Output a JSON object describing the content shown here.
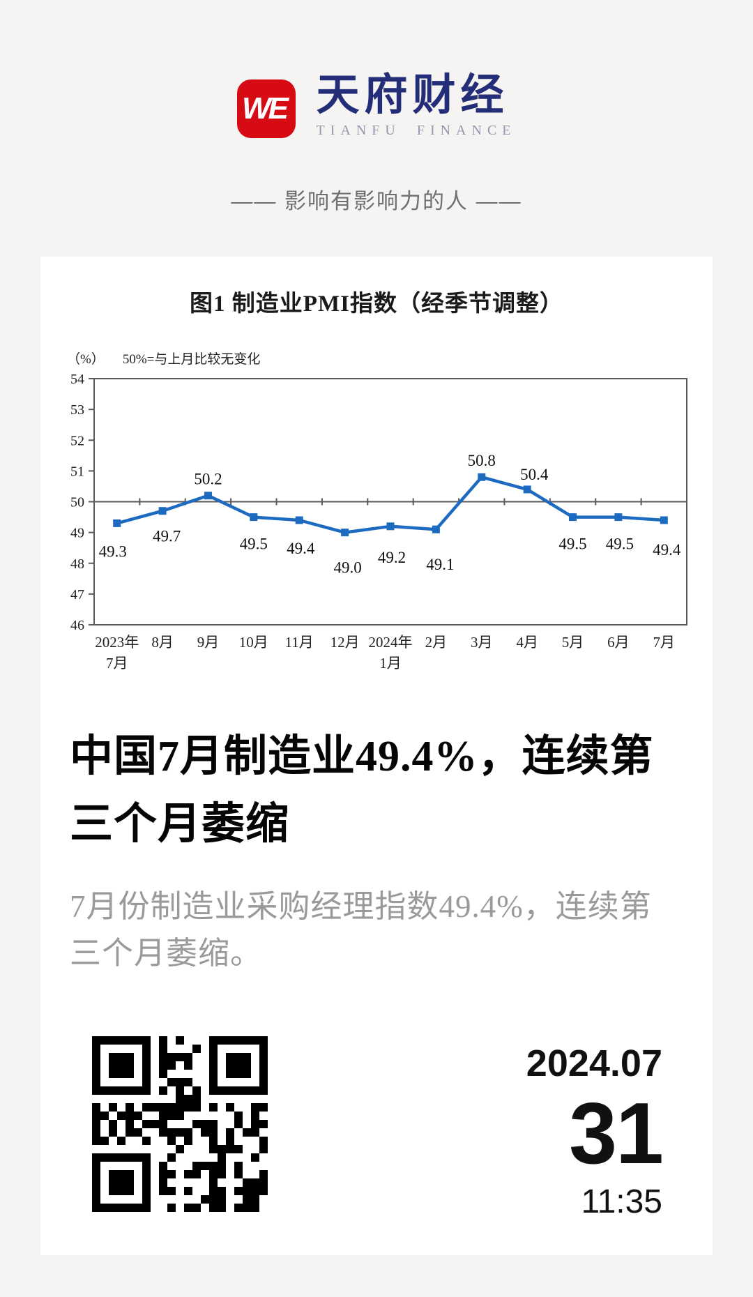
{
  "meta": {
    "page_bg": "#f5f4f2",
    "card_bg": "#ffffff"
  },
  "header": {
    "logo_monogram": "WE",
    "logo_bg": "#d60b14",
    "brand_cn": "天府财经",
    "brand_cn_color": "#242e78",
    "brand_en": "TIANFU FINANCE",
    "brand_en_color": "#9297ae",
    "tagline": "—— 影响有影响力的人 ——"
  },
  "chart_data": {
    "type": "line",
    "title": "图1  制造业PMI指数（经季节调整）",
    "unit_label": "（%）",
    "note": "50%=与上月比较无变化",
    "categories": [
      "2023年\n7月",
      "8月",
      "9月",
      "10月",
      "11月",
      "12月",
      "2024年\n1月",
      "2月",
      "3月",
      "4月",
      "5月",
      "6月",
      "7月"
    ],
    "values": [
      49.3,
      49.7,
      50.2,
      49.5,
      49.4,
      49.0,
      49.2,
      49.1,
      50.8,
      50.4,
      49.5,
      49.5,
      49.4
    ],
    "ylim": [
      46,
      54
    ],
    "ytick_step": 1,
    "reference_line": 50,
    "line_color": "#1d6bc0",
    "axis_color": "#595959",
    "grid": false,
    "legend_position": "none",
    "xlabel": "",
    "ylabel": "（%）"
  },
  "article": {
    "headline": "中国7月制造业49.4%，连续第三个月萎缩",
    "summary": "7月份制造业采购经理指数49.4%，连续第三个月萎缩。"
  },
  "footer": {
    "qr_icon": "qr-code",
    "date_month": "2024.07",
    "date_day": "31",
    "time": "11:35"
  }
}
